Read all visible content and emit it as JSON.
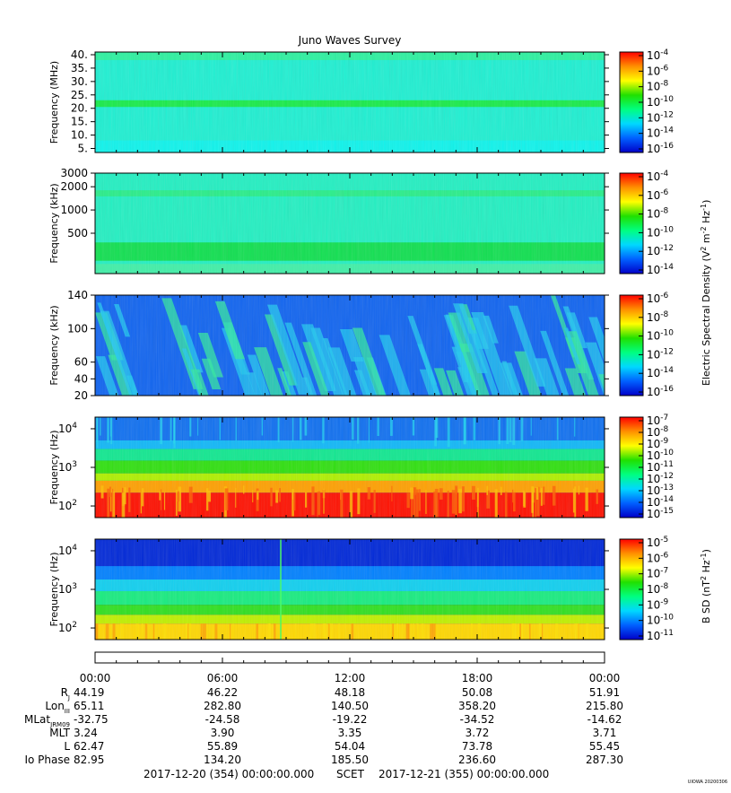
{
  "title": "Juno Waves Survey",
  "colors": {
    "background": "#ffffff",
    "axis": "#000000"
  },
  "colormap": [
    "#0000c8",
    "#0060ff",
    "#00d8ff",
    "#00ff80",
    "#20e000",
    "#ffff00",
    "#ff9000",
    "#ff0000"
  ],
  "chart_data": [
    {
      "type": "heatmap",
      "name": "panel-1",
      "ylabel": "Frequency (MHz)",
      "yscale": "linear",
      "ylim": [
        3.5,
        41
      ],
      "yticks": [
        {
          "v": 40,
          "label": "40."
        },
        {
          "v": 35,
          "label": "35."
        },
        {
          "v": 30,
          "label": "30."
        },
        {
          "v": 25,
          "label": "25."
        },
        {
          "v": 20,
          "label": "20."
        },
        {
          "v": 15,
          "label": "15."
        },
        {
          "v": 10,
          "label": "10."
        },
        {
          "v": 5,
          "label": "5."
        }
      ],
      "colorbar": {
        "labels": [
          "-4",
          "-6",
          "-8",
          "-10",
          "-12",
          "-14",
          "-16"
        ]
      },
      "base_color": "#1ef0d2",
      "bands": [
        {
          "from": 20.5,
          "to": 23.0,
          "color": "#18ec4a"
        },
        {
          "from": 38.0,
          "to": 41.0,
          "color": "#2cf2a0"
        },
        {
          "from": 3.5,
          "to": 8.0,
          "color": "#0ef4ec"
        }
      ]
    },
    {
      "type": "heatmap",
      "name": "panel-2",
      "ylabel": "Frequency (kHz)",
      "yscale": "log",
      "ylim": [
        150,
        3000
      ],
      "yticks": [
        {
          "v": 3000,
          "label": "3000"
        },
        {
          "v": 2000,
          "label": "2000"
        },
        {
          "v": 1000,
          "label": "1000"
        },
        {
          "v": 500,
          "label": "500"
        }
      ],
      "colorbar": {
        "labels": [
          "-4",
          "-6",
          "-8",
          "-10",
          "-12",
          "-14"
        ]
      },
      "base_color": "#22f0c2",
      "bands": [
        {
          "from": 220,
          "to": 380,
          "color": "#10e050"
        },
        {
          "from": 1500,
          "to": 1800,
          "color": "#28ee8a"
        },
        {
          "from": 150,
          "to": 200,
          "color": "#40f0a8"
        }
      ]
    },
    {
      "type": "heatmap",
      "name": "panel-3",
      "ylabel": "Frequency (kHz)",
      "yscale": "linear",
      "ylim": [
        20,
        140
      ],
      "yticks": [
        {
          "v": 140,
          "label": "140"
        },
        {
          "v": 100,
          "label": "100"
        },
        {
          "v": 60,
          "label": "60"
        },
        {
          "v": 40,
          "label": "40"
        },
        {
          "v": 20,
          "label": "20"
        }
      ],
      "colorbar": {
        "labels": [
          "-6",
          "-8",
          "-10",
          "-12",
          "-14",
          "-16"
        ]
      },
      "base_color": "#1064f0",
      "bands": []
    },
    {
      "type": "heatmap",
      "name": "panel-4",
      "ylabel": "Frequency (Hz)",
      "yscale": "log",
      "ylim": [
        50,
        20000
      ],
      "yticks": [
        {
          "v": 10000,
          "label": "10",
          "exp": "4"
        },
        {
          "v": 1000,
          "label": "10",
          "exp": "3"
        },
        {
          "v": 100,
          "label": "10",
          "exp": "2"
        }
      ],
      "colorbar": {
        "labels": [
          "-7",
          "-8",
          "-9",
          "-10",
          "-11",
          "-12",
          "-13",
          "-14",
          "-15"
        ]
      },
      "base_color": "#0040e8",
      "bands": [
        {
          "from": 5000,
          "to": 20000,
          "color": "#1070f0"
        },
        {
          "from": 3000,
          "to": 5000,
          "color": "#10b8f8"
        },
        {
          "from": 1500,
          "to": 3000,
          "color": "#10e890"
        },
        {
          "from": 700,
          "to": 1500,
          "color": "#30e010"
        },
        {
          "from": 450,
          "to": 700,
          "color": "#b0f000"
        },
        {
          "from": 220,
          "to": 450,
          "color": "#ffa000"
        },
        {
          "from": 50,
          "to": 220,
          "color": "#ff1000"
        }
      ]
    },
    {
      "type": "heatmap",
      "name": "panel-5",
      "ylabel": "Frequency (Hz)",
      "yscale": "log",
      "ylim": [
        50,
        20000
      ],
      "yticks": [
        {
          "v": 10000,
          "label": "10",
          "exp": "4"
        },
        {
          "v": 1000,
          "label": "10",
          "exp": "3"
        },
        {
          "v": 100,
          "label": "10",
          "exp": "2"
        }
      ],
      "colorbar": {
        "labels": [
          "-5",
          "-6",
          "-7",
          "-8",
          "-9",
          "-10",
          "-11"
        ]
      },
      "base_color": "#0018d8",
      "bands": [
        {
          "from": 4000,
          "to": 20000,
          "color": "#0028d8"
        },
        {
          "from": 1800,
          "to": 4000,
          "color": "#0080ff"
        },
        {
          "from": 900,
          "to": 1800,
          "color": "#10d0f0"
        },
        {
          "from": 400,
          "to": 900,
          "color": "#18ec80"
        },
        {
          "from": 220,
          "to": 400,
          "color": "#30e020"
        },
        {
          "from": 130,
          "to": 220,
          "color": "#c0f000"
        },
        {
          "from": 50,
          "to": 130,
          "color": "#ffd800"
        }
      ]
    }
  ],
  "colorbar_title_1": "Electric Spectral Density (V",
  "colorbar_title_1b": "2",
  "colorbar_title_1c": " m",
  "colorbar_title_1d": "-2",
  "colorbar_title_1e": " Hz",
  "colorbar_title_1f": "-1",
  "colorbar_title_1g": ")",
  "colorbar_title_2": "B SD (nT",
  "colorbar_title_2b": "2",
  "colorbar_title_2c": " Hz",
  "colorbar_title_2d": "-1",
  "colorbar_title_2e": ")",
  "colorbar_prefix": "10",
  "time_axis": {
    "labels": [
      "00:00",
      "06:00",
      "12:00",
      "18:00",
      "00:00"
    ]
  },
  "ephemeris": {
    "rows": [
      {
        "label": "R",
        "sub": "J",
        "values": [
          "44.19",
          "46.22",
          "48.18",
          "50.08",
          "51.91"
        ]
      },
      {
        "label": "Lon",
        "sub": "III",
        "values": [
          "65.11",
          "282.80",
          "140.50",
          "358.20",
          "215.80"
        ]
      },
      {
        "label": "MLat",
        "sub": "JRM09",
        "values": [
          "-32.75",
          "-24.58",
          "-19.22",
          "-34.52",
          "-14.62"
        ]
      },
      {
        "label": "MLT",
        "sub": "",
        "values": [
          "3.24",
          "3.90",
          "3.35",
          "3.72",
          "3.71"
        ]
      },
      {
        "label": "L",
        "sub": "",
        "values": [
          "62.47",
          "55.89",
          "54.04",
          "73.78",
          "55.45"
        ]
      },
      {
        "label": "Io Phase",
        "sub": "",
        "values": [
          "82.95",
          "134.20",
          "185.50",
          "236.60",
          "287.30"
        ]
      }
    ]
  },
  "footer": {
    "start": "2017-12-20 (354) 00:00:00.000",
    "scet": "SCET",
    "end": "2017-12-21 (355) 00:00:00.000",
    "stamp": "UIOWA 20200306"
  }
}
